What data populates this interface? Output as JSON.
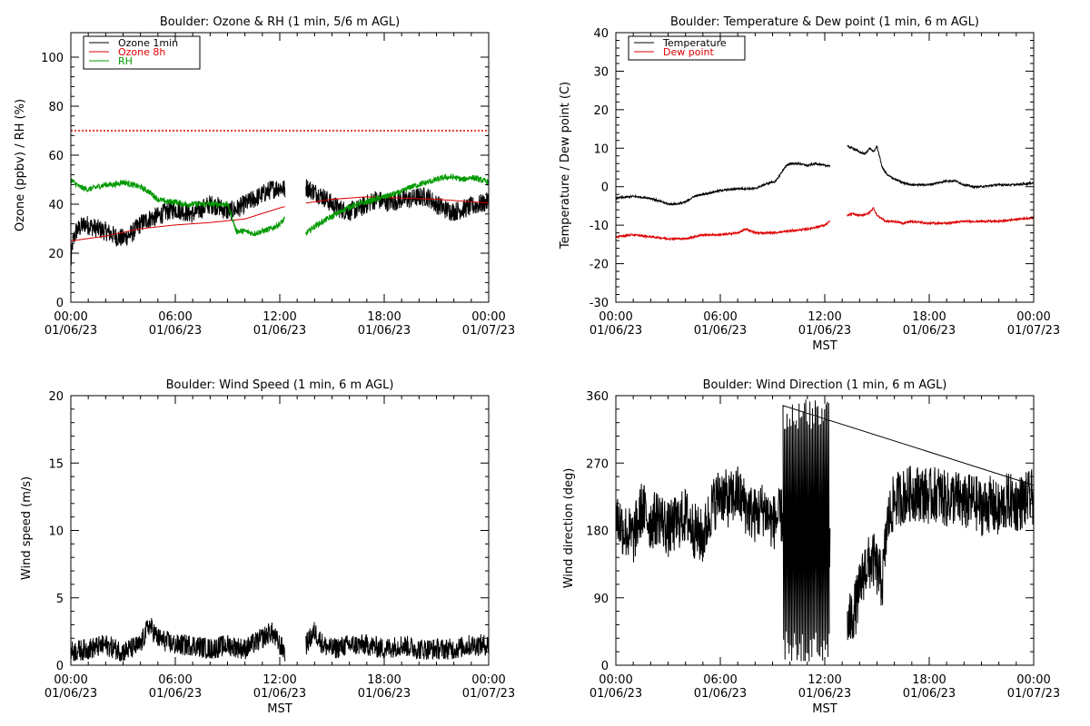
{
  "chart_data": [
    {
      "type": "line",
      "title": "Boulder: Ozone & RH (1 min, 5/6 m AGL)",
      "xlabel": "",
      "ylabel": "Ozone (ppbv) / RH (%)",
      "xlim": [
        0,
        24
      ],
      "ylim": [
        0,
        110
      ],
      "xticks": [
        0,
        6,
        12,
        18,
        24
      ],
      "xtick_labels": [
        [
          "00:00",
          "01/06/23"
        ],
        [
          "06:00",
          "01/06/23"
        ],
        [
          "12:00",
          "01/06/23"
        ],
        [
          "18:00",
          "01/06/23"
        ],
        [
          "00:00",
          "01/07/23"
        ]
      ],
      "yticks": [
        0,
        20,
        40,
        60,
        80,
        100
      ],
      "legend": "top-left",
      "reference_line": {
        "y": 70,
        "color": "#dd0000",
        "style": "dotted"
      },
      "series": [
        {
          "name": "Ozone 1min",
          "color": "#000000",
          "noisy": true,
          "amp": 4,
          "x": [
            0,
            0.1,
            0.3,
            0.8,
            1.5,
            2.0,
            2.5,
            3.0,
            3.5,
            4.0,
            4.5,
            5.0,
            5.5,
            6.0,
            6.5,
            7.0,
            7.5,
            8.0,
            8.5,
            9.0,
            9.5,
            10.0,
            10.5,
            11.0,
            11.5,
            12.0,
            12.3,
            null,
            13.5,
            14.0,
            14.5,
            15.0,
            15.5,
            16.0,
            16.5,
            17.0,
            17.5,
            18.0,
            18.5,
            19.0,
            19.5,
            20.0,
            20.5,
            21.0,
            21.5,
            22.0,
            22.5,
            23.0,
            23.5,
            24.0
          ],
          "y": [
            15,
            24,
            29,
            32,
            30,
            29,
            27,
            26,
            28,
            32,
            34,
            35,
            37,
            38,
            37,
            36,
            38,
            40,
            39,
            37,
            38,
            40,
            42,
            44,
            46,
            47,
            46,
            null,
            47,
            45,
            43,
            40,
            38,
            37,
            38,
            40,
            42,
            41,
            41,
            42,
            42,
            43,
            43,
            40,
            38,
            37,
            38,
            39,
            40,
            41
          ]
        },
        {
          "name": "Ozone 8h",
          "color": "#dd0000",
          "noisy": false,
          "amp": 0,
          "x": [
            0,
            2,
            4,
            6,
            8,
            10,
            12,
            12.3,
            null,
            13.5,
            15,
            17,
            19,
            21,
            23,
            24
          ],
          "y": [
            25,
            27,
            30,
            31.5,
            32.5,
            34,
            38.5,
            39,
            null,
            40.5,
            42,
            43,
            42.5,
            42,
            41,
            40.5
          ]
        },
        {
          "name": "RH",
          "color": "#009900",
          "noisy": true,
          "amp": 1.2,
          "x": [
            0,
            0.5,
            1.0,
            1.5,
            2.0,
            2.5,
            3.0,
            3.5,
            4.0,
            4.5,
            5.0,
            5.5,
            6.0,
            6.5,
            7.0,
            7.5,
            8.0,
            8.5,
            9.0,
            9.2,
            9.5,
            10.0,
            10.5,
            11.0,
            11.5,
            12.0,
            12.3,
            null,
            13.5,
            14.0,
            14.5,
            15.0,
            15.5,
            16.0,
            16.5,
            17.0,
            17.5,
            18.0,
            18.5,
            19.0,
            19.5,
            20.0,
            20.5,
            21.0,
            21.5,
            22.0,
            22.5,
            23.0,
            23.5,
            24.0
          ],
          "y": [
            50,
            47,
            46,
            47,
            48,
            48,
            49,
            48,
            47,
            45,
            42,
            41,
            41,
            40,
            40,
            40,
            40,
            40,
            40,
            36,
            29,
            29,
            28,
            29,
            30,
            32,
            34,
            null,
            28,
            31,
            33,
            35,
            37,
            39,
            40,
            41,
            42,
            43,
            44,
            45,
            47,
            48,
            49,
            50,
            51,
            51,
            50,
            51,
            50,
            49
          ]
        }
      ]
    },
    {
      "type": "line",
      "title": "Boulder: Temperature & Dew point (1 min, 6 m AGL)",
      "xlabel": "MST",
      "ylabel": "Temperature / Dew point (C)",
      "xlim": [
        0,
        24
      ],
      "ylim": [
        -30,
        40
      ],
      "xticks": [
        0,
        6,
        12,
        18,
        24
      ],
      "xtick_labels": [
        [
          "00:00",
          "01/06/23"
        ],
        [
          "06:00",
          "01/06/23"
        ],
        [
          "12:00",
          "01/06/23"
        ],
        [
          "18:00",
          "01/06/23"
        ],
        [
          "00:00",
          "01/07/23"
        ]
      ],
      "yticks": [
        -30,
        -20,
        -10,
        0,
        10,
        20,
        30,
        40
      ],
      "legend": "top-left",
      "series": [
        {
          "name": "Temperature",
          "color": "#000000",
          "noisy": true,
          "amp": 0.25,
          "x": [
            0,
            1,
            2,
            3,
            3.5,
            4,
            4.5,
            5,
            6,
            7,
            8,
            8.5,
            9.2,
            9.7,
            10,
            10.5,
            11,
            11.5,
            12,
            12.3,
            null,
            13.3,
            13.6,
            14,
            14.3,
            14.6,
            14.8,
            15,
            15.3,
            15.6,
            16,
            16.5,
            17,
            18,
            19,
            19.5,
            20,
            20.5,
            21,
            22,
            23,
            24
          ],
          "y": [
            -3,
            -2.5,
            -3,
            -4.5,
            -4.5,
            -4,
            -2.5,
            -2,
            -1,
            -0.5,
            -0.5,
            0.5,
            1.5,
            5,
            6,
            6,
            5.5,
            6,
            5.5,
            5.5,
            null,
            10.5,
            10,
            9,
            8.5,
            10,
            9,
            10.5,
            5,
            3,
            2,
            1,
            0.5,
            0.5,
            1.5,
            1.5,
            0.5,
            0,
            0,
            0.5,
            0.5,
            1
          ]
        },
        {
          "name": "Dew point",
          "color": "#dd0000",
          "noisy": true,
          "amp": 0.25,
          "x": [
            0,
            1,
            2,
            3,
            4,
            5,
            6,
            7,
            7.5,
            8,
            8.5,
            9,
            10,
            11,
            12,
            12.3,
            null,
            13.3,
            13.6,
            14,
            14.5,
            14.8,
            15,
            15.2,
            15.5,
            16,
            16.5,
            17,
            18,
            19,
            20,
            21,
            22,
            23,
            24
          ],
          "y": [
            -13,
            -12.5,
            -13,
            -13.5,
            -13.5,
            -12.5,
            -12.5,
            -12,
            -11,
            -12,
            -12,
            -12,
            -11.5,
            -11,
            -10,
            -9,
            null,
            -7.5,
            -7,
            -7.5,
            -7,
            -5.5,
            -7.5,
            -8,
            -9,
            -9,
            -9.5,
            -9,
            -9.5,
            -9.5,
            -9,
            -9,
            -9,
            -8.5,
            -8
          ]
        }
      ]
    },
    {
      "type": "line",
      "title": "Boulder: Wind Speed (1 min, 6 m AGL)",
      "xlabel": "MST",
      "ylabel": "Wind speed (m/s)",
      "xlim": [
        0,
        24
      ],
      "ylim": [
        0,
        20
      ],
      "xticks": [
        0,
        6,
        12,
        18,
        24
      ],
      "xtick_labels": [
        [
          "00:00",
          "01/06/23"
        ],
        [
          "06:00",
          "01/06/23"
        ],
        [
          "12:00",
          "01/06/23"
        ],
        [
          "18:00",
          "01/06/23"
        ],
        [
          "00:00",
          "01/07/23"
        ]
      ],
      "yticks": [
        0,
        5,
        10,
        15,
        20
      ],
      "series": [
        {
          "name": "",
          "color": "#000000",
          "noisy": true,
          "amp": 0.8,
          "floor": 0,
          "x": [
            0,
            1,
            2,
            3,
            4,
            4.5,
            5,
            6,
            7,
            8,
            9,
            10,
            11,
            11.5,
            12,
            12.3,
            null,
            13.5,
            14,
            14.5,
            15,
            16,
            17,
            18,
            19,
            20,
            21,
            22,
            23,
            24
          ],
          "y": [
            1,
            1.2,
            1.5,
            1,
            1.5,
            3,
            2,
            1.5,
            1.5,
            1.2,
            1.5,
            1.2,
            2,
            2.5,
            1.5,
            1,
            null,
            1.5,
            2.5,
            1.5,
            1.2,
            1.5,
            1.5,
            1.2,
            1.5,
            1.2,
            1.2,
            1.2,
            1.5,
            1.5
          ]
        }
      ]
    },
    {
      "type": "line",
      "title": "Boulder: Wind Direction (1 min, 6 m AGL)",
      "xlabel": "MST",
      "ylabel": "Wind direction (deg)",
      "xlim": [
        0,
        24
      ],
      "ylim": [
        0,
        360
      ],
      "xticks": [
        0,
        6,
        12,
        18,
        24
      ],
      "xtick_labels": [
        [
          "00:00",
          "01/06/23"
        ],
        [
          "06:00",
          "01/06/23"
        ],
        [
          "12:00",
          "01/06/23"
        ],
        [
          "18:00",
          "01/06/23"
        ],
        [
          "00:00",
          "01/07/23"
        ]
      ],
      "yticks": [
        0,
        90,
        180,
        270,
        360
      ],
      "series": [
        {
          "name": "",
          "color": "#000000",
          "noisy": true,
          "amp": 38,
          "x": [
            0,
            0.5,
            1,
            1.5,
            2,
            2.5,
            3,
            3.5,
            4,
            4.5,
            5,
            5.5,
            6,
            6.5,
            7,
            7.5,
            8,
            8.5,
            9,
            9.5,
            10,
            10.5,
            11,
            11.5,
            12,
            12.3,
            null,
            13.3,
            13.8,
            14.3,
            14.8,
            15.3,
            15.6,
            16,
            16.5,
            17,
            17.5,
            18,
            18.5,
            19,
            19.5,
            20,
            20.5,
            21,
            21.5,
            22,
            22.5,
            23,
            23.5,
            24
          ],
          "y": [
            200,
            180,
            170,
            210,
            190,
            200,
            180,
            190,
            200,
            180,
            170,
            210,
            230,
            220,
            230,
            210,
            200,
            210,
            190,
            200,
            180,
            150,
            170,
            160,
            170,
            160,
            null,
            50,
            80,
            130,
            140,
            110,
            190,
            220,
            225,
            230,
            230,
            225,
            230,
            220,
            225,
            215,
            220,
            210,
            215,
            205,
            220,
            215,
            220,
            225
          ]
        }
      ]
    }
  ]
}
